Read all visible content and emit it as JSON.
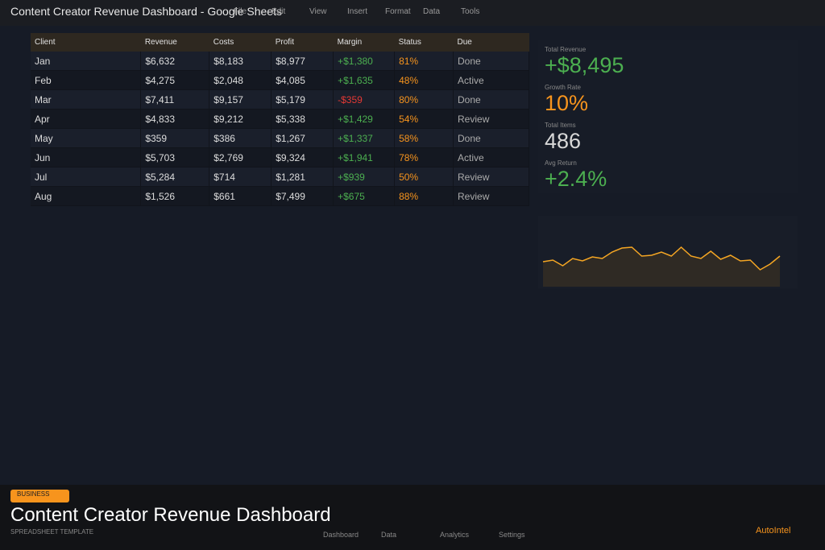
{
  "topbar": {
    "title": "Content Creator Revenue Dashboard - Google Sheets",
    "menu": [
      "File",
      "Edit",
      "View",
      "Insert",
      "Format",
      "Data",
      "Tools"
    ]
  },
  "table": {
    "header": [
      "Client",
      "Revenue",
      "Costs",
      "Profit",
      "Margin",
      "Status",
      "Due"
    ],
    "rows": [
      [
        "Jan",
        "$6,632",
        "$8,183",
        "$8,977",
        "+$1,380",
        "81%",
        "Done"
      ],
      [
        "Feb",
        "$4,275",
        "$2,048",
        "$4,085",
        "+$1,635",
        "48%",
        "Active"
      ],
      [
        "Mar",
        "$7,411",
        "$9,157",
        "$5,179",
        "-$359",
        "80%",
        "Done"
      ],
      [
        "Apr",
        "$4,833",
        "$9,212",
        "$5,338",
        "+$1,429",
        "54%",
        "Review"
      ],
      [
        "May",
        "$359",
        "$386",
        "$1,267",
        "+$1,337",
        "58%",
        "Done"
      ],
      [
        "Jun",
        "$5,703",
        "$2,769",
        "$9,324",
        "+$1,941",
        "78%",
        "Active"
      ],
      [
        "Jul",
        "$5,284",
        "$714",
        "$1,281",
        "+$939",
        "50%",
        "Review"
      ],
      [
        "Aug",
        "$1,526",
        "$661",
        "$7,499",
        "+$675",
        "88%",
        "Review"
      ]
    ]
  },
  "kpis": [
    {
      "label": "Total Revenue",
      "value": "+$8,495",
      "color": "#4caf50"
    },
    {
      "label": "Growth Rate",
      "value": "10%",
      "color": "#f7941d"
    },
    {
      "label": "Total Items",
      "value": "486",
      "color": "#d8d8d8"
    },
    {
      "label": "Avg Return",
      "value": "+2.4%",
      "color": "#4caf50"
    }
  ],
  "chart_data": {
    "type": "line",
    "color": "#f5a623",
    "values": [
      31,
      33,
      26,
      35,
      32,
      37,
      35,
      43,
      48,
      49,
      38,
      39,
      43,
      38,
      49,
      38,
      35,
      44,
      34,
      39,
      32,
      33,
      21,
      28,
      38
    ]
  },
  "footer": {
    "badge": "BUSINESS",
    "title": "Content Creator Revenue Dashboard",
    "subtitle": "SPREADSHEET TEMPLATE",
    "nav": [
      "Dashboard",
      "Data",
      "Analytics",
      "Settings"
    ],
    "brand": "AutoIntel"
  }
}
